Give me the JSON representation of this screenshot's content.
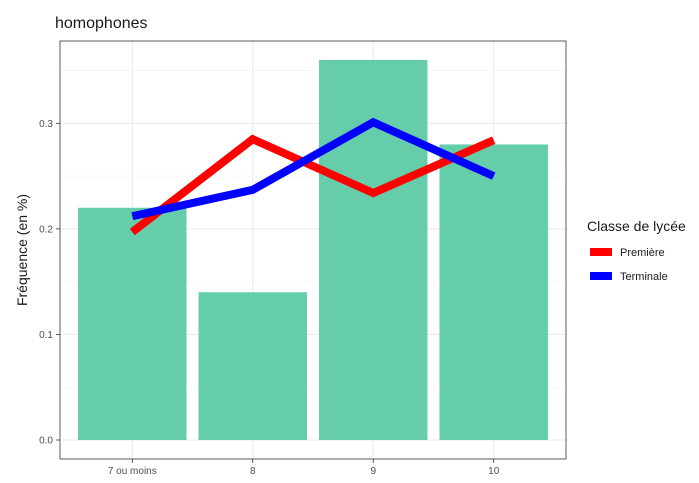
{
  "chart_data": {
    "type": "bar",
    "title": "homophones",
    "xlabel": "",
    "ylabel": "Fréquence (en %)",
    "ylim": [
      -0.018,
      0.378
    ],
    "y_ticks": [
      0.0,
      0.1,
      0.2,
      0.3
    ],
    "y_tick_labels": [
      "0.0",
      "0.1",
      "0.2",
      "0.3"
    ],
    "categories": [
      "7 ou moins",
      "8",
      "9",
      "10"
    ],
    "bars": {
      "values": [
        0.22,
        0.14,
        0.36,
        0.28
      ],
      "color": "#66CDAA"
    },
    "series": [
      {
        "name": "Première",
        "type": "line",
        "color": "#FF0000",
        "values": [
          0.197,
          0.285,
          0.234,
          0.284
        ]
      },
      {
        "name": "Terminale",
        "type": "line",
        "color": "#0000FF",
        "values": [
          0.212,
          0.237,
          0.301,
          0.25
        ]
      }
    ],
    "grid": true,
    "legend": {
      "title": "Classe de lycée",
      "position": "right"
    }
  }
}
